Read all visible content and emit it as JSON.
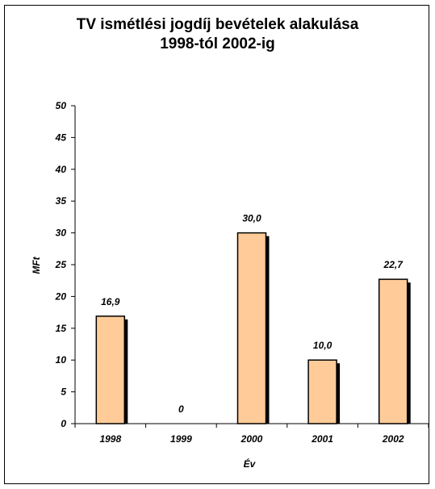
{
  "chart_data": {
    "type": "bar",
    "title": "TV ismétlési jogdíj bevételek alakulása",
    "subtitle": "1998-tól 2002-ig",
    "xlabel": "Év",
    "ylabel": "MFt",
    "categories": [
      "1998",
      "1999",
      "2000",
      "2001",
      "2002"
    ],
    "values": [
      16.9,
      0,
      30.0,
      10.0,
      22.7
    ],
    "data_labels": [
      "16,9",
      "0",
      "30,0",
      "10,0",
      "22,7"
    ],
    "ylim": [
      0,
      50
    ],
    "yticks": [
      0,
      5,
      10,
      15,
      20,
      25,
      30,
      35,
      40,
      45,
      50
    ],
    "grid": false,
    "legend": "none",
    "colors": {
      "bar_fill": "#FFCC99",
      "bar_shadow": "#000000",
      "axis": "#000000"
    }
  }
}
